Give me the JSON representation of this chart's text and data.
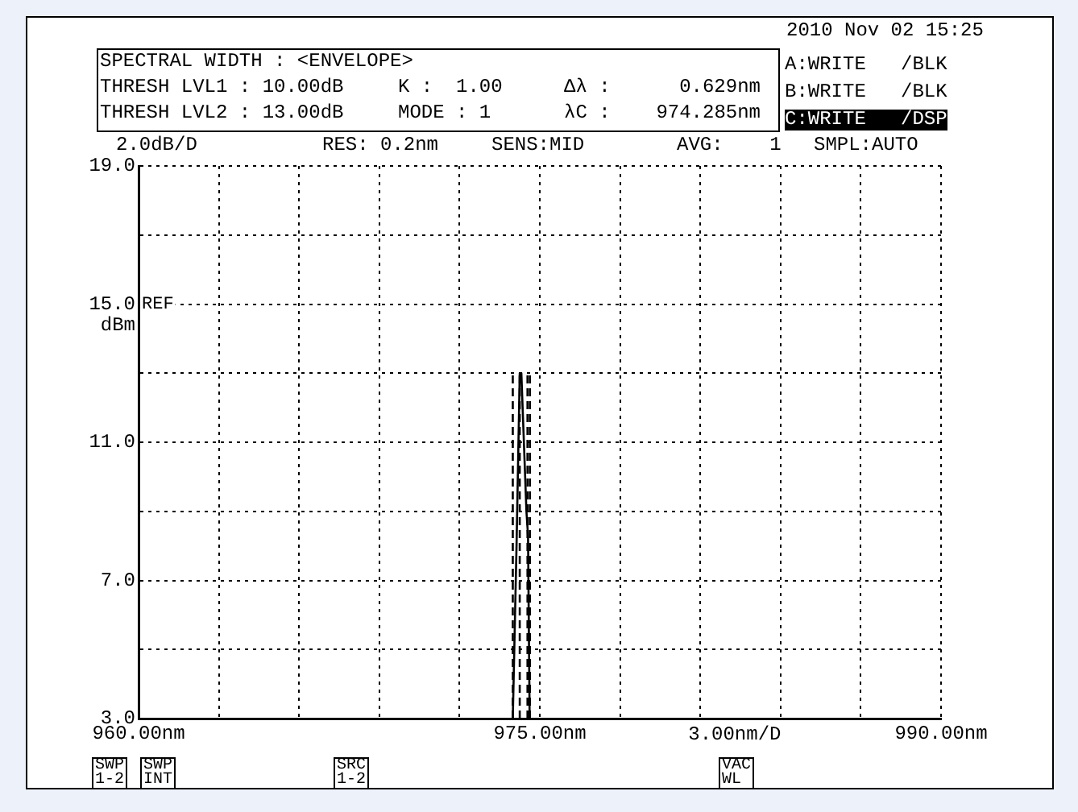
{
  "chart_data": {
    "type": "line",
    "ylabel": "dBm",
    "xlabel": "3.00nm/D",
    "xlim": [
      960,
      990
    ],
    "xticks": [
      {
        "value": 960,
        "label": "960.00nm"
      },
      {
        "value": 963,
        "label": null
      },
      {
        "value": 966,
        "label": null
      },
      {
        "value": 969,
        "label": null
      },
      {
        "value": 972,
        "label": null
      },
      {
        "value": 975,
        "label": "975.00nm"
      },
      {
        "value": 978,
        "label": null
      },
      {
        "value": 981,
        "label": null
      },
      {
        "value": 984,
        "label": null
      },
      {
        "value": 987,
        "label": null
      },
      {
        "value": 990,
        "label": "990.00nm"
      }
    ],
    "ylim": [
      3,
      19
    ],
    "yticks": [
      {
        "value": 3,
        "label": "3.0"
      },
      {
        "value": 5,
        "label": null
      },
      {
        "value": 7,
        "label": "7.0"
      },
      {
        "value": 9,
        "label": null
      },
      {
        "value": 11,
        "label": "11.0"
      },
      {
        "value": 13,
        "label": null
      },
      {
        "value": 15,
        "label": "15.0"
      },
      {
        "value": 17,
        "label": null
      },
      {
        "value": 19,
        "label": "19.0"
      }
    ],
    "grid": true,
    "marker": "none",
    "series": [
      {
        "type": "line",
        "color": "#000000",
        "line_style": "solid",
        "x": [
          973.99,
          974.13,
          974.25,
          974.31,
          974.5,
          974.56,
          974.62
        ],
        "values": [
          3,
          8,
          13,
          13,
          9,
          8.3,
          3
        ]
      },
      {
        "type": "line",
        "color": "#000000",
        "line_style": "dashed",
        "x": [
          973.99,
          973.99
        ],
        "values": [
          3,
          13
        ]
      },
      {
        "type": "line",
        "color": "#000000",
        "line_style": "dashed",
        "x": [
          974.25,
          974.25
        ],
        "values": [
          3,
          13
        ]
      },
      {
        "type": "line",
        "color": "#000000",
        "line_style": "dashed",
        "x": [
          974.54,
          974.54
        ],
        "values": [
          3,
          13
        ]
      },
      {
        "type": "line",
        "color": "#000000",
        "line_style": "dashed",
        "x": [
          974.63,
          974.63
        ],
        "values": [
          3,
          13
        ]
      }
    ],
    "annotations": [
      "2010 Nov 02 15:25",
      "SPECTRAL WIDTH : <ENVELOPE>",
      "THRESH LVL1 : 10.00dB",
      "K :  1.00",
      "Δλ :",
      "0.629nm",
      "THRESH LVL2 : 13.00dB",
      "MODE : 1",
      "λC :",
      "974.285nm",
      "A:WRITE   /BLK",
      "B:WRITE   /BLK",
      "C:WRITE   /DSP",
      "2.0dB/D",
      "RES: 0.2nm",
      "SENS:MID",
      "AVG:    1",
      "SMPL:AUTO",
      "SWP\n1-2",
      "SWP\nINT",
      "SRC\n1-2",
      "VAC\nWL",
      {
        "text": "REF",
        "y": 15
      }
    ]
  }
}
